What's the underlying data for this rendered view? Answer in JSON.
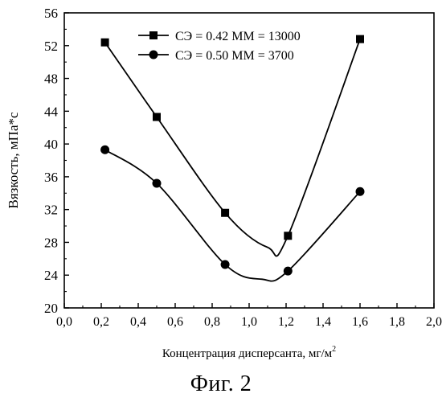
{
  "figure": {
    "caption": "Фиг. 2"
  },
  "chart_data": {
    "type": "line",
    "xlabel": "Концентрация дисперсанта, мг/м",
    "xlabel_superscript": "2",
    "ylabel": "Вязкость, мПа*с",
    "xlim": [
      0.0,
      2.0
    ],
    "ylim": [
      20,
      56
    ],
    "x_ticks": [
      "0,0",
      "0,2",
      "0,4",
      "0,6",
      "0,8",
      "1,0",
      "1,2",
      "1,4",
      "1,6",
      "1,8",
      "2,0"
    ],
    "y_ticks": [
      "20",
      "24",
      "28",
      "32",
      "36",
      "40",
      "44",
      "48",
      "52",
      "56"
    ],
    "legend_position": "top-left",
    "grid": false,
    "series": [
      {
        "name": "СЭ = 0.42 ММ = 13000",
        "marker": "square",
        "x": [
          0.22,
          0.5,
          0.87,
          1.21,
          1.6
        ],
        "y": [
          52.4,
          43.3,
          31.6,
          28.8,
          52.8
        ],
        "smooth_min": {
          "x": 1.1,
          "y": 27.4
        }
      },
      {
        "name": "СЭ = 0.50 ММ = 3700",
        "marker": "circle",
        "x": [
          0.22,
          0.5,
          0.87,
          1.21,
          1.6
        ],
        "y": [
          39.3,
          35.2,
          25.3,
          24.5,
          34.2
        ],
        "smooth_min": {
          "x": 1.07,
          "y": 23.5
        }
      }
    ]
  }
}
